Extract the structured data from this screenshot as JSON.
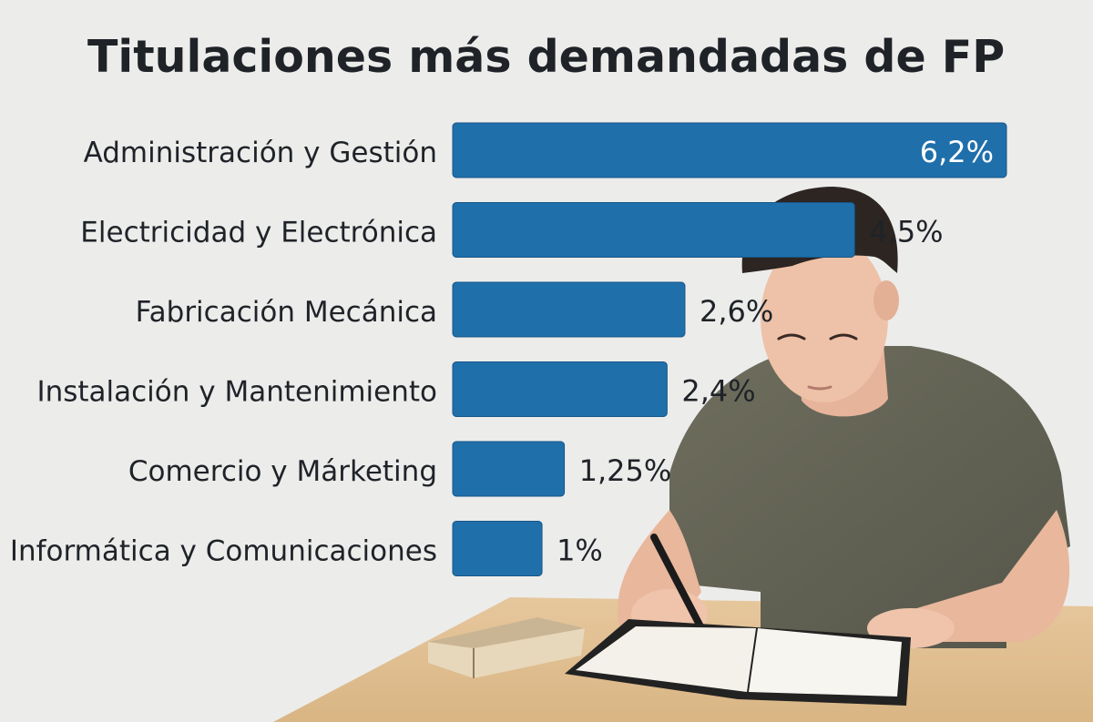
{
  "title": "Titulaciones más demandadas de FP",
  "colors": {
    "bar": "#1f6fab",
    "bar_edge": "#175686",
    "text": "#1f2328",
    "background": "#ececeb",
    "value_on_bar": "#ffffff"
  },
  "chart_data": {
    "type": "bar",
    "orientation": "horizontal",
    "title": "Titulaciones más demandadas de FP",
    "xlabel": "",
    "ylabel": "",
    "grid": false,
    "legend": "none",
    "xlim": [
      0,
      6.2
    ],
    "categories": [
      "Administración y Gestión",
      "Electricidad y Electrónica",
      "Fabricación Mecánica",
      "Instalación y Mantenimiento",
      "Comercio y Márketing",
      "Informática y Comunicaciones"
    ],
    "values": [
      6.2,
      4.5,
      2.6,
      2.4,
      1.25,
      1.0
    ],
    "value_labels": [
      "6,2%",
      "4,5%",
      "2,6%",
      "2,4%",
      "1,25%",
      "1%"
    ]
  }
}
